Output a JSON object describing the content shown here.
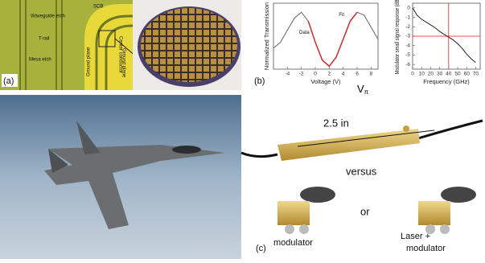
{
  "panel_a": {
    "label": "(a)",
    "annotations": [
      "Waveguide etch",
      "T-rail",
      "Mesa etch",
      "SCB",
      "Ground plane",
      "Center conductor",
      "Ground plane"
    ]
  },
  "panel_b": {
    "label": "(b)",
    "v_pi": {
      "symbol": "V",
      "subscript": "π"
    },
    "transmission_chart": {
      "type": "line",
      "x_label": "Voltage (V)",
      "y_label": "Normalized Transmission",
      "x": [
        -6,
        -5,
        -4,
        -3,
        -2,
        -1,
        0,
        1,
        2,
        3,
        4,
        5,
        6,
        7,
        8,
        9
      ],
      "xlim": [
        -6,
        9
      ],
      "xticks": [
        -4,
        -2,
        0,
        2,
        4,
        6,
        8
      ],
      "ylim": [
        0,
        1.1
      ],
      "series": [
        {
          "name": "Data",
          "color": "#666666",
          "values": [
            0.35,
            0.45,
            0.65,
            0.85,
            0.95,
            0.8,
            0.45,
            0.15,
            0.05,
            0.2,
            0.5,
            0.8,
            0.95,
            0.9,
            0.7,
            0.5
          ]
        },
        {
          "name": "Fit",
          "color": "#d62020",
          "values": [
            null,
            null,
            null,
            null,
            null,
            0.8,
            0.45,
            0.15,
            0.05,
            0.2,
            0.5,
            0.8,
            0.95,
            null,
            null,
            null
          ]
        }
      ]
    },
    "response_chart": {
      "type": "line",
      "x_label": "Frequency (GHz)",
      "y_label": "Modulator small signal response (dB)",
      "x": [
        0,
        2,
        5,
        10,
        15,
        20,
        25,
        30,
        35,
        40,
        45,
        50,
        55,
        60,
        65,
        70
      ],
      "xlim": [
        0,
        75
      ],
      "xticks": [
        0,
        10,
        20,
        30,
        40,
        50,
        60,
        70
      ],
      "ylim": [
        -6.5,
        0.5
      ],
      "yticks": [
        0,
        -1,
        -2,
        -3,
        -4,
        -5,
        -6
      ],
      "series": [
        {
          "color": "#222222",
          "values": [
            0,
            -0.3,
            -0.8,
            -1.2,
            -1.5,
            -1.8,
            -2.1,
            -2.5,
            -2.8,
            -3.1,
            -3.4,
            -3.8,
            -4.3,
            -4.9,
            -5.4,
            -5.8
          ]
        }
      ],
      "reference_lines": {
        "y": -3,
        "x": 40,
        "color": "#d62020"
      }
    }
  },
  "panel_c": {
    "label": "(c)",
    "length_label": "2.5 in",
    "versus": "versus",
    "or": "or",
    "left_label": "modulator",
    "right_label": [
      "Laser +",
      "modulator"
    ]
  }
}
